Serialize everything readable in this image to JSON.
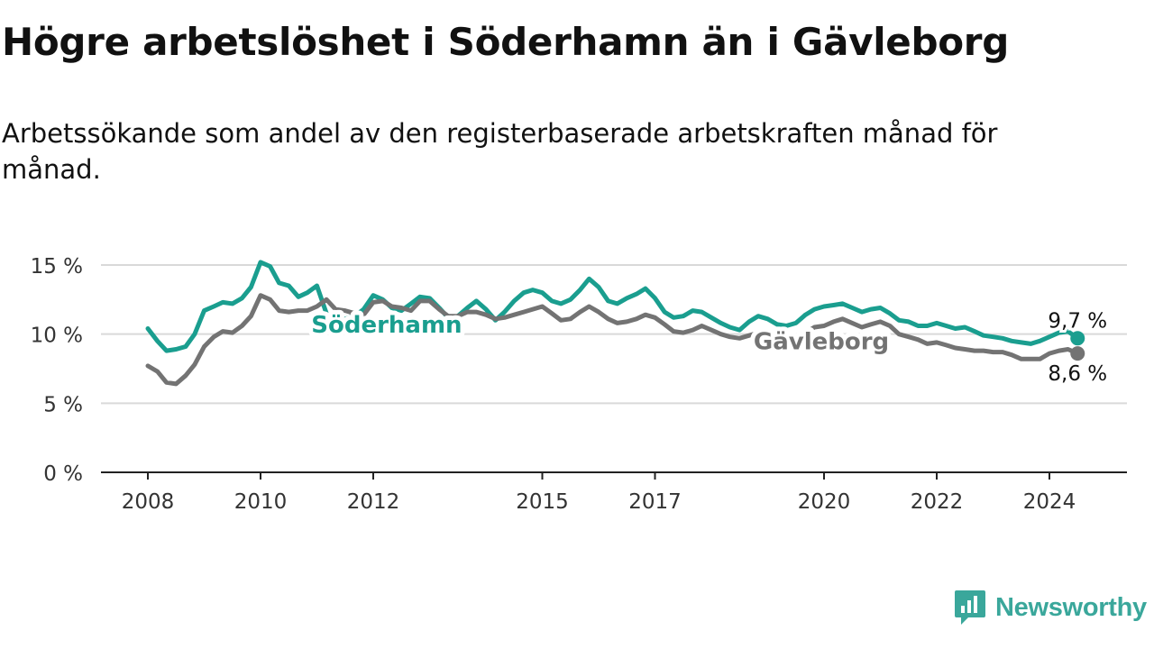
{
  "title": "Högre arbetslöshet i Söderhamn än i Gävleborg",
  "subtitle": "Arbetssökande som andel av den registerbaserade arbetskraften månad för månad.",
  "brand": {
    "name": "Newsworthy",
    "icon": "newsworthy-logo-icon"
  },
  "colors": {
    "soderhamn": "#1a9e8f",
    "gavleborg": "#737373",
    "grid": "#d9d9d9",
    "axis": "#222222",
    "brand": "#3aa79b"
  },
  "chart_data": {
    "type": "line",
    "y_ticks": [
      0,
      5,
      10,
      15
    ],
    "y_tick_labels": [
      "0 %",
      "5 %",
      "10 %",
      "15 %"
    ],
    "ylim": [
      0,
      15
    ],
    "x_ticks": [
      2008,
      2010,
      2012,
      2015,
      2017,
      2020,
      2022,
      2024
    ],
    "x_tick_labels": [
      "2008",
      "2010",
      "2012",
      "2015",
      "2017",
      "2020",
      "2022",
      "2024"
    ],
    "xlim": [
      2007.2,
      2025.4
    ],
    "grid": true,
    "series": [
      {
        "name": "Söderhamn",
        "color": "#1a9e8f",
        "end_label": "9,7 %",
        "x": [
          2008.0,
          2008.17,
          2008.33,
          2008.5,
          2008.67,
          2008.83,
          2009.0,
          2009.17,
          2009.33,
          2009.5,
          2009.67,
          2009.83,
          2010.0,
          2010.17,
          2010.33,
          2010.5,
          2010.67,
          2010.83,
          2011.0,
          2011.17,
          2011.33,
          2011.5,
          2011.67,
          2011.83,
          2012.0,
          2012.17,
          2012.33,
          2012.5,
          2012.67,
          2012.83,
          2013.0,
          2013.17,
          2013.33,
          2013.5,
          2013.67,
          2013.83,
          2014.0,
          2014.17,
          2014.33,
          2014.5,
          2014.67,
          2014.83,
          2015.0,
          2015.17,
          2015.33,
          2015.5,
          2015.67,
          2015.83,
          2016.0,
          2016.17,
          2016.33,
          2016.5,
          2016.67,
          2016.83,
          2017.0,
          2017.17,
          2017.33,
          2017.5,
          2017.67,
          2017.83,
          2018.0,
          2018.17,
          2018.33,
          2018.5,
          2018.67,
          2018.83,
          2019.0,
          2019.17,
          2019.33,
          2019.5,
          2019.67,
          2019.83,
          2020.0,
          2020.17,
          2020.33,
          2020.5,
          2020.67,
          2020.83,
          2021.0,
          2021.17,
          2021.33,
          2021.5,
          2021.67,
          2021.83,
          2022.0,
          2022.17,
          2022.33,
          2022.5,
          2022.67,
          2022.83,
          2023.0,
          2023.17,
          2023.33,
          2023.5,
          2023.67,
          2023.83,
          2024.0,
          2024.17,
          2024.33,
          2024.5
        ],
        "values": [
          10.4,
          9.5,
          8.8,
          8.9,
          9.1,
          10.0,
          11.7,
          12.0,
          12.3,
          12.2,
          12.6,
          13.4,
          15.2,
          14.9,
          13.7,
          13.5,
          12.7,
          13.0,
          13.5,
          11.5,
          10.8,
          11.1,
          11.3,
          11.8,
          12.8,
          12.5,
          11.9,
          11.7,
          12.2,
          12.7,
          12.6,
          11.9,
          11.2,
          11.3,
          11.9,
          12.4,
          11.8,
          11.0,
          11.6,
          12.4,
          13.0,
          13.2,
          13.0,
          12.4,
          12.2,
          12.5,
          13.2,
          14.0,
          13.4,
          12.4,
          12.2,
          12.6,
          12.9,
          13.3,
          12.6,
          11.6,
          11.2,
          11.3,
          11.7,
          11.6,
          11.2,
          10.8,
          10.5,
          10.3,
          10.9,
          11.3,
          11.1,
          10.7,
          10.6,
          10.8,
          11.4,
          11.8,
          12.0,
          12.1,
          12.2,
          11.9,
          11.6,
          11.8,
          11.9,
          11.5,
          11.0,
          10.9,
          10.6,
          10.6,
          10.8,
          10.6,
          10.4,
          10.5,
          10.2,
          9.9,
          9.8,
          9.7,
          9.5,
          9.4,
          9.3,
          9.5,
          9.8,
          10.1,
          10.2,
          9.7
        ]
      },
      {
        "name": "Gävleborg",
        "color": "#737373",
        "end_label": "8,6 %",
        "x": [
          2008.0,
          2008.17,
          2008.33,
          2008.5,
          2008.67,
          2008.83,
          2009.0,
          2009.17,
          2009.33,
          2009.5,
          2009.67,
          2009.83,
          2010.0,
          2010.17,
          2010.33,
          2010.5,
          2010.67,
          2010.83,
          2011.0,
          2011.17,
          2011.33,
          2011.5,
          2011.67,
          2011.83,
          2012.0,
          2012.17,
          2012.33,
          2012.5,
          2012.67,
          2012.83,
          2013.0,
          2013.17,
          2013.33,
          2013.5,
          2013.67,
          2013.83,
          2014.0,
          2014.17,
          2014.33,
          2014.5,
          2014.67,
          2014.83,
          2015.0,
          2015.17,
          2015.33,
          2015.5,
          2015.67,
          2015.83,
          2016.0,
          2016.17,
          2016.33,
          2016.5,
          2016.67,
          2016.83,
          2017.0,
          2017.17,
          2017.33,
          2017.5,
          2017.67,
          2017.83,
          2018.0,
          2018.17,
          2018.33,
          2018.5,
          2018.67,
          2018.83,
          2019.0,
          2019.17,
          2019.33,
          2019.5,
          2019.67,
          2019.83,
          2020.0,
          2020.17,
          2020.33,
          2020.5,
          2020.67,
          2020.83,
          2021.0,
          2021.17,
          2021.33,
          2021.5,
          2021.67,
          2021.83,
          2022.0,
          2022.17,
          2022.33,
          2022.5,
          2022.67,
          2022.83,
          2023.0,
          2023.17,
          2023.33,
          2023.5,
          2023.67,
          2023.83,
          2024.0,
          2024.17,
          2024.33,
          2024.5
        ],
        "values": [
          7.7,
          7.3,
          6.5,
          6.4,
          7.0,
          7.8,
          9.1,
          9.8,
          10.2,
          10.1,
          10.6,
          11.3,
          12.8,
          12.5,
          11.7,
          11.6,
          11.7,
          11.7,
          12.0,
          12.5,
          11.8,
          11.7,
          11.5,
          11.4,
          12.3,
          12.4,
          12.0,
          11.9,
          11.7,
          12.4,
          12.4,
          11.8,
          11.3,
          11.3,
          11.6,
          11.6,
          11.4,
          11.1,
          11.2,
          11.4,
          11.6,
          11.8,
          12.0,
          11.5,
          11.0,
          11.1,
          11.6,
          12.0,
          11.6,
          11.1,
          10.8,
          10.9,
          11.1,
          11.4,
          11.2,
          10.7,
          10.2,
          10.1,
          10.3,
          10.6,
          10.3,
          10.0,
          9.8,
          9.7,
          9.9,
          10.1,
          10.0,
          9.7,
          9.6,
          9.8,
          10.1,
          10.5,
          10.6,
          10.9,
          11.1,
          10.8,
          10.5,
          10.7,
          10.9,
          10.6,
          10.0,
          9.8,
          9.6,
          9.3,
          9.4,
          9.2,
          9.0,
          8.9,
          8.8,
          8.8,
          8.7,
          8.7,
          8.5,
          8.2,
          8.2,
          8.2,
          8.6,
          8.8,
          8.9,
          8.6
        ]
      }
    ],
    "labels": [
      {
        "text": "Söderhamn",
        "x": 2010.9,
        "y": 10.7,
        "series": 0
      },
      {
        "text": "Gävleborg",
        "x": 2018.75,
        "y": 9.5,
        "series": 1
      }
    ]
  }
}
